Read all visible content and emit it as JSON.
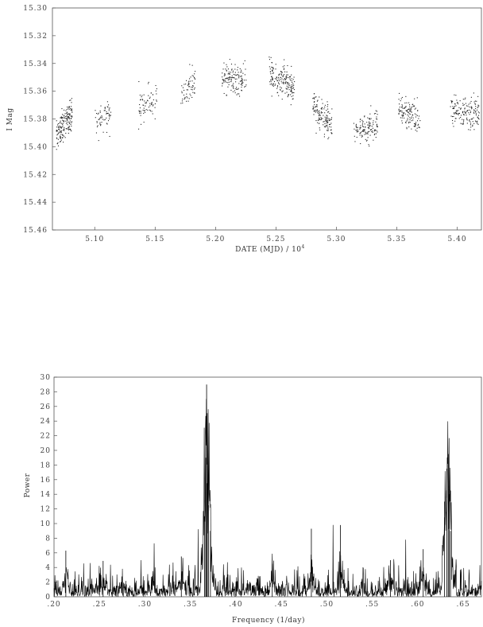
{
  "chart_data": [
    {
      "type": "scatter",
      "title": "",
      "xlabel": "DATE (MJD) / 10",
      "xlabel_exp": "4",
      "ylabel": "I Mag",
      "xlim": [
        5.065,
        5.42
      ],
      "ylim": [
        15.46,
        15.3
      ],
      "y_inverted": true,
      "grid": false,
      "legend": "none",
      "xticks": [
        "5.10",
        "5.15",
        "5.20",
        "5.25",
        "5.30",
        "5.35",
        "5.40"
      ],
      "yticks": [
        "15.30",
        "15.32",
        "15.34",
        "15.36",
        "15.38",
        "15.40",
        "15.42",
        "15.44",
        "15.46"
      ],
      "seasons": [
        {
          "x0": 5.068,
          "x1": 5.081,
          "mag_start": 15.39,
          "mag_end": 15.377,
          "n": 170
        },
        {
          "x0": 5.1,
          "x1": 5.113,
          "mag_start": 15.382,
          "mag_end": 15.376,
          "n": 60
        },
        {
          "x0": 5.136,
          "x1": 5.152,
          "mag_start": 15.372,
          "mag_end": 15.363,
          "n": 70
        },
        {
          "x0": 5.171,
          "x1": 5.183,
          "mag_start": 15.363,
          "mag_end": 15.352,
          "n": 60
        },
        {
          "x0": 5.205,
          "x1": 5.225,
          "mag_start": 15.349,
          "mag_end": 15.352,
          "n": 140
        },
        {
          "x0": 5.244,
          "x1": 5.265,
          "mag_start": 15.345,
          "mag_end": 15.358,
          "n": 180
        },
        {
          "x0": 5.28,
          "x1": 5.296,
          "mag_start": 15.37,
          "mag_end": 15.384,
          "n": 140
        },
        {
          "x0": 5.314,
          "x1": 5.334,
          "mag_start": 15.388,
          "mag_end": 15.385,
          "n": 130
        },
        {
          "x0": 5.351,
          "x1": 5.369,
          "mag_start": 15.371,
          "mag_end": 15.38,
          "n": 130
        },
        {
          "x0": 5.394,
          "x1": 5.418,
          "mag_start": 15.373,
          "mag_end": 15.376,
          "n": 160
        }
      ]
    },
    {
      "type": "line",
      "title": "",
      "xlabel": "Frequency (1/day)",
      "ylabel": "Power",
      "xlim": [
        0.2,
        0.67
      ],
      "ylim": [
        0,
        30
      ],
      "grid": false,
      "legend": "none",
      "xticks": [
        ".20",
        ".25",
        ".30",
        ".35",
        ".40",
        ".45",
        ".50",
        ".55",
        ".60",
        ".65"
      ],
      "yticks": [
        "0",
        "2",
        "4",
        "6",
        "8",
        "10",
        "12",
        "14",
        "16",
        "18",
        "20",
        "22",
        "24",
        "26",
        "28",
        "30"
      ],
      "peaks": [
        {
          "x": 0.3678,
          "y": 29.0
        },
        {
          "x": 0.3668,
          "y": 19.0
        },
        {
          "x": 0.3685,
          "y": 15.5
        },
        {
          "x": 0.37,
          "y": 12.5
        },
        {
          "x": 0.3655,
          "y": 11.0
        },
        {
          "x": 0.372,
          "y": 9.0
        },
        {
          "x": 0.6335,
          "y": 19.5
        },
        {
          "x": 0.632,
          "y": 17.5
        },
        {
          "x": 0.6345,
          "y": 14.0
        },
        {
          "x": 0.6295,
          "y": 13.0
        },
        {
          "x": 0.636,
          "y": 9.0
        },
        {
          "x": 0.483,
          "y": 9.3
        },
        {
          "x": 0.515,
          "y": 9.8
        },
        {
          "x": 0.213,
          "y": 6.3
        },
        {
          "x": 0.606,
          "y": 6.5
        },
        {
          "x": 0.57,
          "y": 5.0
        },
        {
          "x": 0.34,
          "y": 5.5
        },
        {
          "x": 0.254,
          "y": 4.9
        },
        {
          "x": 0.44,
          "y": 4.5
        }
      ],
      "noise_level": 1.4
    }
  ]
}
